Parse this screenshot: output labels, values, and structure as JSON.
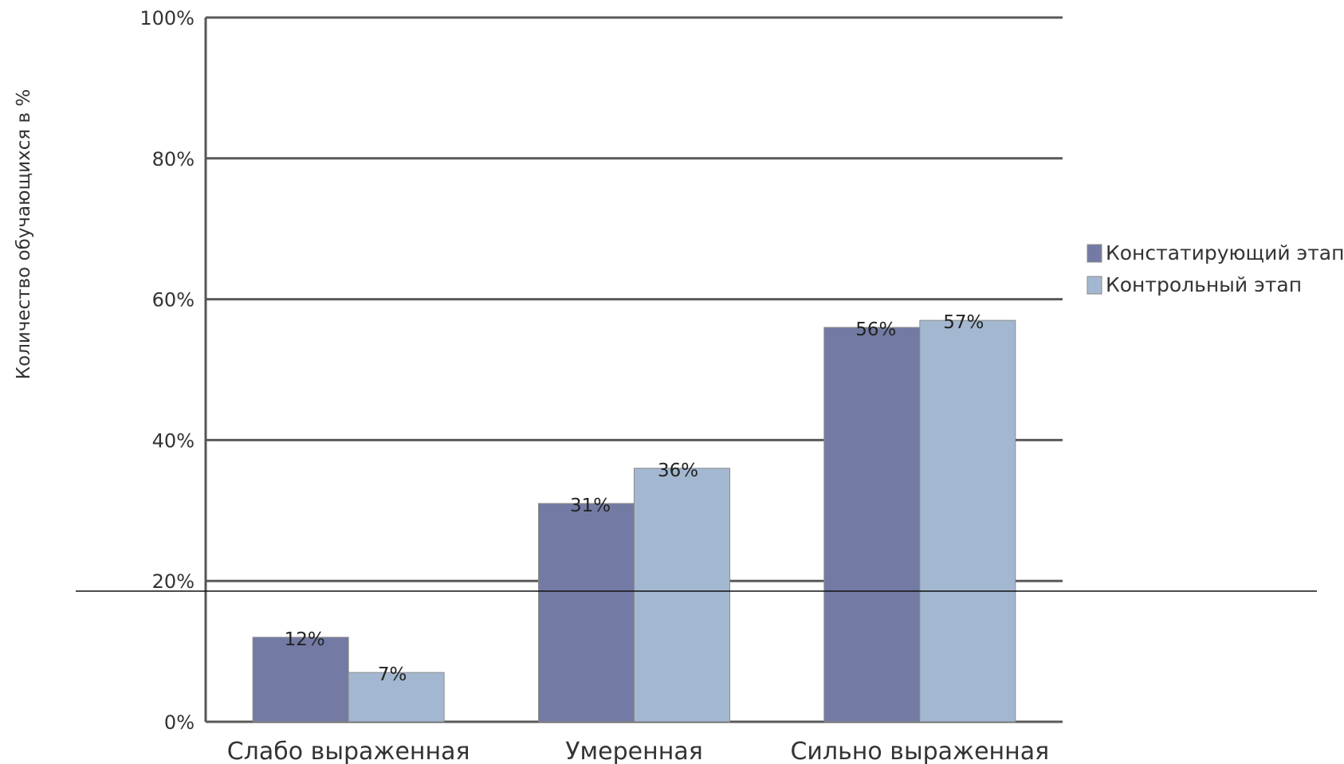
{
  "chart_data": {
    "type": "bar",
    "title": "",
    "xlabel": "",
    "ylabel": "Количество обучающихся в %",
    "categories": [
      "Слабо выраженная",
      "Умеренная",
      "Сильно выраженная"
    ],
    "series": [
      {
        "name": "Констатирующий этап",
        "color": "#737ba4",
        "values": [
          12,
          31,
          56
        ],
        "labels": [
          "12%",
          "31%",
          "56%"
        ]
      },
      {
        "name": "Контрольный этап",
        "color": "#a3b8d0",
        "values": [
          7,
          36,
          57
        ],
        "labels": [
          "7%",
          "36%",
          "57%"
        ]
      }
    ],
    "ylim": [
      0,
      100
    ],
    "yticks": [
      0,
      20,
      40,
      60,
      80,
      100
    ],
    "ytick_labels": [
      "0%",
      "20%",
      "40%",
      "60%",
      "80%",
      "100%"
    ],
    "grid": true,
    "legend_position": "right"
  }
}
